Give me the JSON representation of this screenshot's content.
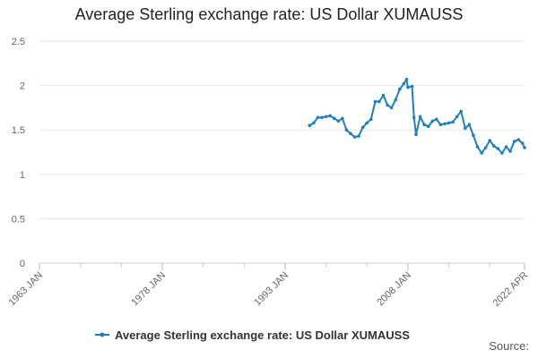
{
  "chart_data": {
    "type": "line",
    "title": "Average Sterling exchange rate: US Dollar XUMAUSS",
    "xlabel": "",
    "ylabel": "",
    "ylim": [
      0,
      2.5
    ],
    "xlim": [
      "1963 JAN",
      "2022 APR"
    ],
    "y_ticks": [
      "0",
      "0.5",
      "1",
      "1.5",
      "2",
      "2.5"
    ],
    "x_ticks": [
      "1963 JAN",
      "1978 JAN",
      "1993 JAN",
      "2008 JAN",
      "2022 APR"
    ],
    "grid": true,
    "legend_position": "bottom",
    "series": [
      {
        "name": "Average Sterling exchange rate: US Dollar XUMAUSS",
        "color": "#1f7fbf",
        "x": [
          "1996 JAN",
          "1996 JUL",
          "1997 JAN",
          "1997 JUL",
          "1998 JAN",
          "1998 JUL",
          "1999 JAN",
          "1999 JUL",
          "2000 JAN",
          "2000 JUL",
          "2001 JAN",
          "2001 JUL",
          "2002 JAN",
          "2002 JUL",
          "2003 JAN",
          "2003 JUL",
          "2004 JAN",
          "2004 JUL",
          "2005 JAN",
          "2005 JUL",
          "2006 JAN",
          "2006 JUL",
          "2007 JAN",
          "2007 JUL",
          "2007 NOV",
          "2008 JAN",
          "2008 JUL",
          "2008 OCT",
          "2009 JAN",
          "2009 JUL",
          "2010 JAN",
          "2010 JUL",
          "2011 JAN",
          "2011 JUL",
          "2012 JAN",
          "2012 JUL",
          "2013 JAN",
          "2013 JUL",
          "2014 JAN",
          "2014 JUL",
          "2015 JAN",
          "2015 JUL",
          "2016 JAN",
          "2016 JUL",
          "2017 JAN",
          "2017 JUL",
          "2018 JAN",
          "2018 JUL",
          "2019 JAN",
          "2019 JUL",
          "2020 JAN",
          "2020 JUL",
          "2021 JAN",
          "2021 JUL",
          "2022 JAN",
          "2022 APR"
        ],
        "values": [
          1.55,
          1.58,
          1.64,
          1.64,
          1.65,
          1.66,
          1.63,
          1.6,
          1.63,
          1.5,
          1.46,
          1.42,
          1.43,
          1.53,
          1.58,
          1.62,
          1.82,
          1.82,
          1.89,
          1.78,
          1.75,
          1.84,
          1.96,
          2.02,
          2.07,
          1.98,
          1.99,
          1.64,
          1.45,
          1.65,
          1.56,
          1.54,
          1.6,
          1.62,
          1.56,
          1.57,
          1.58,
          1.59,
          1.65,
          1.71,
          1.52,
          1.56,
          1.44,
          1.31,
          1.24,
          1.3,
          1.38,
          1.32,
          1.29,
          1.24,
          1.31,
          1.26,
          1.37,
          1.39,
          1.35,
          1.3
        ]
      }
    ]
  },
  "source_label": "Source:"
}
